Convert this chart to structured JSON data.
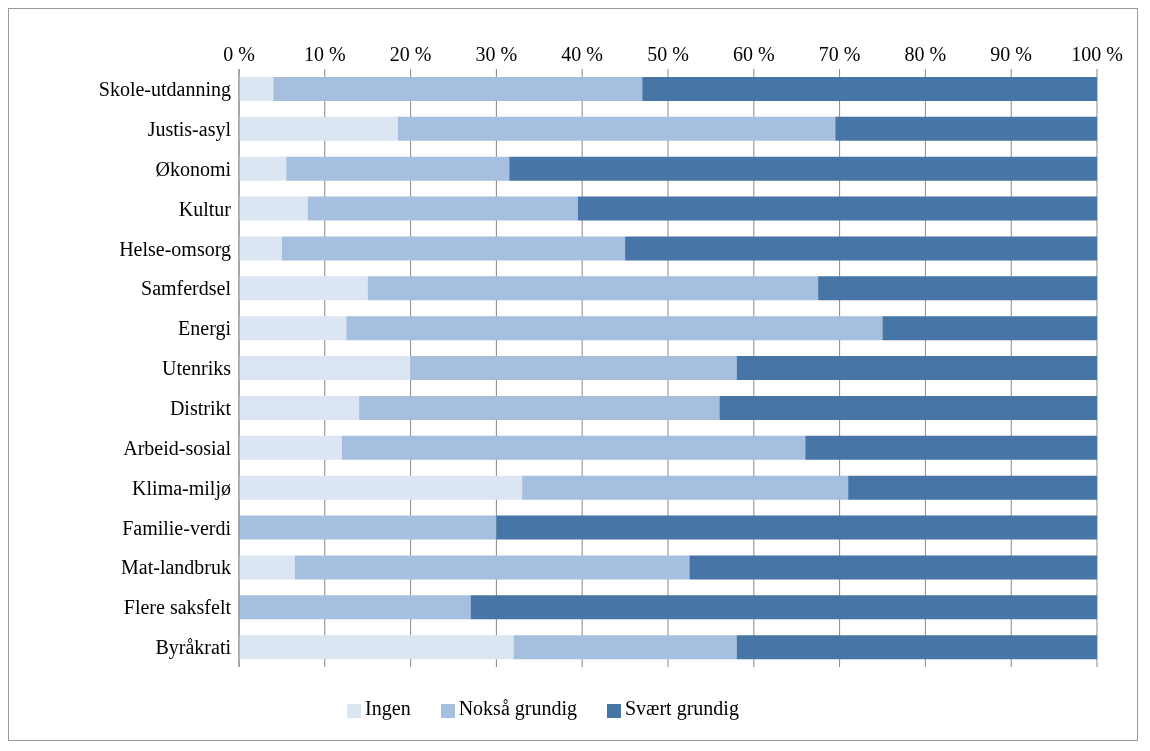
{
  "chart_data": {
    "type": "bar",
    "orientation": "horizontal",
    "stacked": true,
    "categories": [
      "Skole-utdanning",
      "Justis-asyl",
      "Økonomi",
      "Kultur",
      "Helse-omsorg",
      "Samferdsel",
      "Energi",
      "Utenriks",
      "Distrikt",
      "Arbeid-sosial",
      "Klima-miljø",
      "Familie-verdi",
      "Mat-landbruk",
      "Flere saksfelt",
      "Byråkrati"
    ],
    "series": [
      {
        "name": "Ingen",
        "color": "#dce6f2",
        "values": [
          4,
          18.5,
          5.5,
          8,
          5,
          15,
          12.5,
          20,
          14,
          12,
          33,
          0,
          6.5,
          0,
          32
        ]
      },
      {
        "name": "Nokså grundig",
        "color": "#a7bfde",
        "values": [
          43,
          51,
          26,
          31.5,
          40,
          52.5,
          62.5,
          38,
          42,
          54,
          38,
          30,
          46,
          27,
          26
        ]
      },
      {
        "name": "Svært grundig",
        "color": "#4775a6",
        "values": [
          53,
          30.5,
          68.5,
          60.5,
          55,
          32.5,
          25,
          42,
          44,
          34,
          29,
          70,
          47.5,
          73,
          42
        ]
      }
    ],
    "xlim": [
      0,
      100
    ],
    "xticks": [
      {
        "value": 0,
        "label": "0 %"
      },
      {
        "value": 10,
        "label": "10 %"
      },
      {
        "value": 20,
        "label": "20 %"
      },
      {
        "value": 30,
        "label": "30 %"
      },
      {
        "value": 40,
        "label": "40 %"
      },
      {
        "value": 50,
        "label": "50 %"
      },
      {
        "value": 60,
        "label": "60 %"
      },
      {
        "value": 70,
        "label": "70 %"
      },
      {
        "value": 80,
        "label": "80 %"
      },
      {
        "value": 90,
        "label": "90 %"
      },
      {
        "value": 100,
        "label": "100 %"
      }
    ],
    "grid": "x",
    "legend": "bottom"
  }
}
